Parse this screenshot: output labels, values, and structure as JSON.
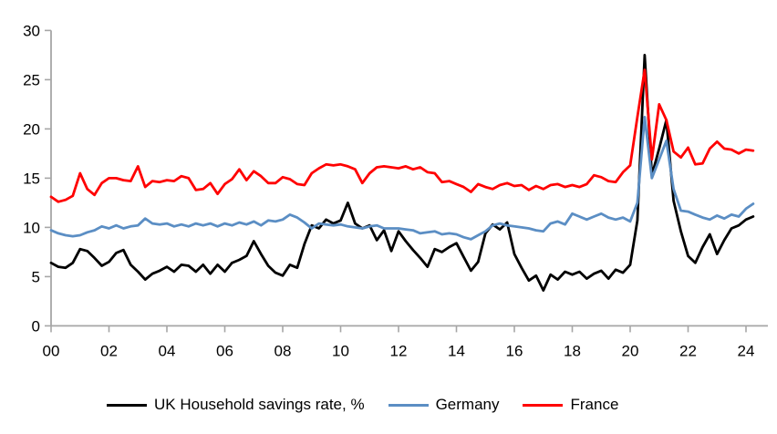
{
  "chart_data": {
    "type": "line",
    "title": "",
    "xlabel": "",
    "ylabel": "",
    "grid": false,
    "legend_position": "bottom",
    "x_axis": {
      "start": "2000Q1",
      "end": "2024Q2",
      "frequency": "quarterly",
      "tick_labels": [
        "00",
        "02",
        "04",
        "06",
        "08",
        "10",
        "12",
        "14",
        "16",
        "18",
        "20",
        "22",
        "24"
      ],
      "tick_years": [
        2000,
        2002,
        2004,
        2006,
        2008,
        2010,
        2012,
        2014,
        2016,
        2018,
        2020,
        2022,
        2024
      ]
    },
    "y_axis": {
      "min": 0,
      "max": 30,
      "tick_step": 5,
      "ticks": [
        0,
        5,
        10,
        15,
        20,
        25,
        30
      ],
      "tick_labels": [
        "0",
        "5",
        "10",
        "15",
        "20",
        "25",
        "30"
      ]
    },
    "series": [
      {
        "name": "UK Household savings rate, %",
        "color": "#000000",
        "values": [
          6.4,
          6.0,
          5.9,
          6.4,
          7.8,
          7.6,
          6.9,
          6.1,
          6.5,
          7.4,
          7.7,
          6.2,
          5.5,
          4.7,
          5.3,
          5.6,
          6.0,
          5.5,
          6.2,
          6.1,
          5.5,
          6.2,
          5.3,
          6.2,
          5.5,
          6.4,
          6.7,
          7.1,
          8.6,
          7.3,
          6.1,
          5.4,
          5.1,
          6.2,
          5.9,
          8.3,
          10.2,
          9.9,
          10.8,
          10.4,
          10.7,
          12.5,
          10.4,
          9.9,
          10.2,
          8.7,
          9.7,
          7.6,
          9.6,
          8.6,
          7.7,
          6.9,
          6.0,
          7.8,
          7.5,
          8.0,
          8.4,
          7.0,
          5.6,
          6.5,
          9.4,
          10.3,
          9.8,
          10.5,
          7.3,
          5.9,
          4.6,
          5.1,
          3.6,
          5.2,
          4.7,
          5.5,
          5.2,
          5.5,
          4.8,
          5.3,
          5.6,
          4.8,
          5.7,
          5.4,
          6.2,
          10.7,
          27.5,
          15.3,
          18.0,
          20.9,
          12.7,
          9.6,
          7.1,
          6.4,
          8.0,
          9.3,
          7.3,
          8.7,
          9.9,
          10.2,
          10.8,
          11.1
        ]
      },
      {
        "name": "Germany",
        "color": "#5b8ec4",
        "values": [
          9.7,
          9.4,
          9.2,
          9.1,
          9.2,
          9.5,
          9.7,
          10.1,
          9.9,
          10.2,
          9.9,
          10.1,
          10.2,
          10.9,
          10.4,
          10.3,
          10.4,
          10.1,
          10.3,
          10.1,
          10.4,
          10.2,
          10.4,
          10.1,
          10.4,
          10.2,
          10.5,
          10.3,
          10.6,
          10.2,
          10.7,
          10.6,
          10.8,
          11.3,
          11.0,
          10.5,
          9.9,
          10.4,
          10.3,
          10.2,
          10.3,
          10.1,
          10.0,
          9.9,
          10.1,
          10.2,
          9.9,
          9.9,
          9.9,
          9.8,
          9.7,
          9.4,
          9.5,
          9.6,
          9.3,
          9.4,
          9.3,
          9.0,
          8.8,
          9.2,
          9.6,
          10.2,
          10.4,
          10.2,
          10.1,
          10.0,
          9.9,
          9.7,
          9.6,
          10.4,
          10.6,
          10.3,
          11.4,
          11.1,
          10.8,
          11.1,
          11.4,
          11.0,
          10.8,
          11.0,
          10.6,
          12.5,
          21.2,
          15.0,
          16.9,
          18.8,
          13.9,
          11.7,
          11.6,
          11.3,
          11.0,
          10.8,
          11.2,
          10.9,
          11.3,
          11.1,
          11.9,
          12.4
        ]
      },
      {
        "name": "France",
        "color": "#ff0000",
        "values": [
          13.1,
          12.6,
          12.8,
          13.2,
          15.5,
          13.9,
          13.3,
          14.5,
          15.0,
          15.0,
          14.8,
          14.7,
          16.2,
          14.1,
          14.7,
          14.6,
          14.8,
          14.7,
          15.2,
          15.0,
          13.8,
          13.9,
          14.5,
          13.4,
          14.4,
          14.9,
          15.9,
          14.8,
          15.7,
          15.2,
          14.5,
          14.5,
          15.1,
          14.9,
          14.4,
          14.3,
          15.5,
          16.0,
          16.4,
          16.3,
          16.4,
          16.2,
          15.9,
          14.5,
          15.5,
          16.1,
          16.2,
          16.1,
          16.0,
          16.2,
          15.9,
          16.1,
          15.6,
          15.5,
          14.6,
          14.7,
          14.4,
          14.1,
          13.6,
          14.4,
          14.1,
          13.9,
          14.3,
          14.5,
          14.2,
          14.3,
          13.8,
          14.2,
          13.9,
          14.3,
          14.4,
          14.1,
          14.3,
          14.1,
          14.4,
          15.3,
          15.1,
          14.7,
          14.6,
          15.6,
          16.3,
          21.2,
          26.0,
          16.9,
          22.5,
          20.9,
          17.7,
          17.1,
          18.1,
          16.4,
          16.5,
          18.0,
          18.7,
          18.0,
          17.9,
          17.5,
          17.9,
          17.8
        ]
      }
    ]
  },
  "colors": {
    "background": "#ffffff",
    "axis": "#a6a6a6",
    "tick_label": "#000000",
    "uk_line": "#000000",
    "germany_line": "#5b8ec4",
    "france_line": "#ff0000"
  }
}
